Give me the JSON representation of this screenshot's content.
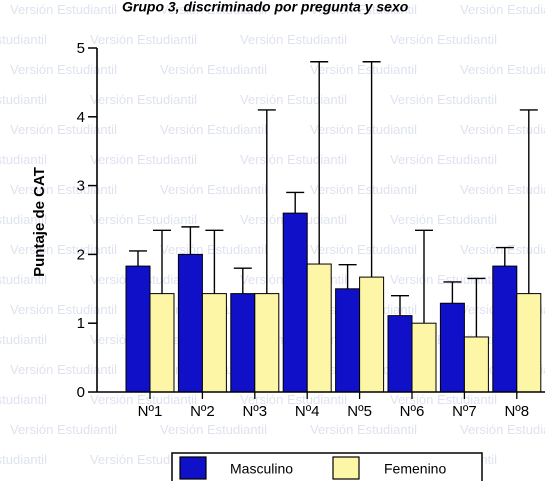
{
  "chart_data": {
    "type": "bar",
    "title": "Grupo 3, discriminado por pregunta y sexo",
    "ylabel": "Puntaje de CAT",
    "xlabel": "",
    "ylim": [
      0,
      5
    ],
    "yticks": [
      0,
      1,
      2,
      3,
      4,
      5
    ],
    "categories": [
      "Nº1",
      "Nº2",
      "Nº3",
      "Nº4",
      "Nº5",
      "Nº6",
      "Nº7",
      "Nº8"
    ],
    "series": [
      {
        "name": "Masculino",
        "color": "#1010c8",
        "values": [
          1.83,
          2.0,
          1.43,
          2.6,
          1.5,
          1.11,
          1.29,
          1.83
        ],
        "error_upper": [
          2.05,
          2.4,
          1.8,
          2.9,
          1.85,
          1.4,
          1.6,
          2.1
        ]
      },
      {
        "name": "Femenino",
        "color": "#fdf6a6",
        "values": [
          1.43,
          1.43,
          1.43,
          1.86,
          1.67,
          1.0,
          0.8,
          1.43
        ],
        "error_upper": [
          2.35,
          2.35,
          4.1,
          4.8,
          4.8,
          2.35,
          1.65,
          4.1
        ]
      }
    ],
    "legend": {
      "position": "bottom",
      "entries": [
        "Masculino",
        "Femenino"
      ]
    },
    "grid": false
  },
  "watermark": {
    "text": "Versión Estudiantil",
    "color": "#dfe3ef"
  }
}
